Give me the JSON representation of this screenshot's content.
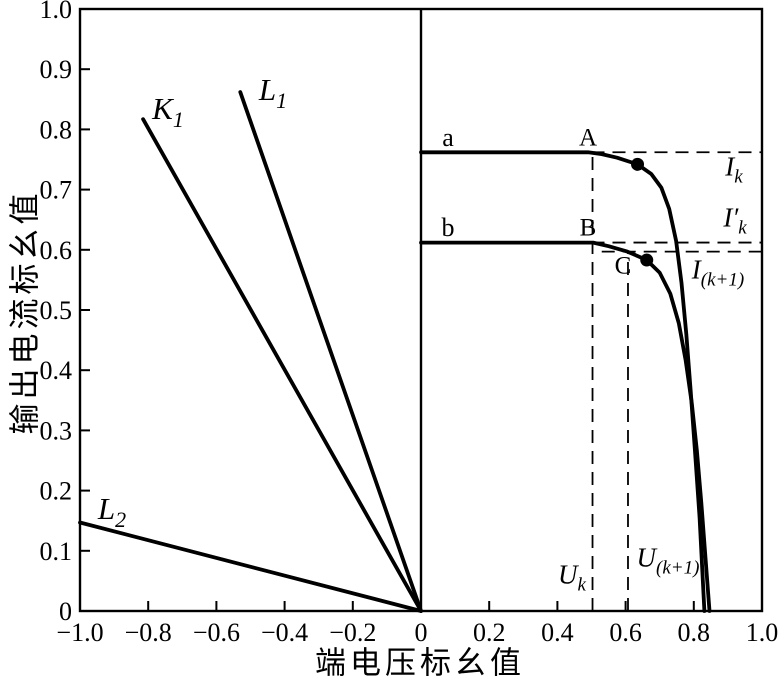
{
  "chart_data": {
    "type": "line",
    "title": "",
    "xlabel": "端电压标幺值",
    "ylabel": "输出电流标幺值",
    "xlim": [
      -1.0,
      1.0
    ],
    "ylim": [
      0.0,
      1.0
    ],
    "grid": false,
    "legend": "none",
    "ink_color": "#000000",
    "background_color": "#ffffff",
    "xticks": {
      "values": [
        -1.0,
        -0.8,
        -0.6,
        -0.4,
        -0.2,
        0,
        0.2,
        0.4,
        0.6,
        0.8,
        1.0
      ],
      "labels": [
        "−1.0",
        "−0.8",
        "−0.6",
        "−0.4",
        "−0.2",
        "0",
        "0.2",
        "0.4",
        "0.6",
        "0.8",
        "1.0"
      ]
    },
    "yticks": {
      "values": [
        0,
        0.1,
        0.2,
        0.3,
        0.4,
        0.5,
        0.6,
        0.7,
        0.8,
        0.9,
        1.0
      ],
      "labels": [
        "0",
        "0.1",
        "0.2",
        "0.3",
        "0.4",
        "0.5",
        "0.6",
        "0.7",
        "0.8",
        "0.9",
        "1.0"
      ]
    },
    "zero_axis_line": true,
    "series": [
      {
        "name": "K1",
        "label": "K1",
        "points": [
          [
            -0.815,
            0.817
          ],
          [
            0,
            0
          ]
        ]
      },
      {
        "name": "L1",
        "label": "L1",
        "points": [
          [
            -0.53,
            0.862
          ],
          [
            0,
            0
          ]
        ]
      },
      {
        "name": "L2",
        "label": "L2",
        "points": [
          [
            -1.0,
            0.147
          ],
          [
            0,
            0
          ]
        ]
      },
      {
        "name": "curve-a",
        "label": "a",
        "points": [
          [
            0,
            0.762
          ],
          [
            0.49,
            0.762
          ],
          [
            0.53,
            0.759
          ],
          [
            0.575,
            0.753
          ],
          [
            0.635,
            0.742
          ],
          [
            0.675,
            0.726
          ],
          [
            0.705,
            0.703
          ],
          [
            0.728,
            0.668
          ],
          [
            0.748,
            0.615
          ],
          [
            0.764,
            0.545
          ],
          [
            0.778,
            0.46
          ],
          [
            0.791,
            0.365
          ],
          [
            0.803,
            0.27
          ],
          [
            0.817,
            0.155
          ],
          [
            0.831,
            0.0
          ]
        ]
      },
      {
        "name": "curve-b",
        "label": "b",
        "points": [
          [
            0,
            0.612
          ],
          [
            0.505,
            0.612
          ],
          [
            0.55,
            0.606
          ],
          [
            0.605,
            0.597
          ],
          [
            0.662,
            0.583
          ],
          [
            0.7,
            0.562
          ],
          [
            0.731,
            0.527
          ],
          [
            0.756,
            0.478
          ],
          [
            0.776,
            0.417
          ],
          [
            0.794,
            0.345
          ],
          [
            0.809,
            0.266
          ],
          [
            0.822,
            0.18
          ],
          [
            0.834,
            0.09
          ],
          [
            0.846,
            0.0
          ]
        ]
      }
    ],
    "markers": [
      {
        "name": "operating-point-a",
        "x": 0.635,
        "y": 0.742
      },
      {
        "name": "operating-point-b",
        "x": 0.662,
        "y": 0.583
      }
    ],
    "guides": [
      {
        "name": "Ik-level",
        "orient": "h",
        "y": 0.762,
        "x1": 0.5,
        "x2": 1.0
      },
      {
        "name": "Ik-prime-level",
        "orient": "h",
        "y": 0.612,
        "x1": 0.5,
        "x2": 1.0
      },
      {
        "name": "Ik-plus1-level",
        "orient": "h",
        "y": 0.597,
        "x1": 0.53,
        "x2": 1.0
      },
      {
        "name": "Uk-level",
        "orient": "v",
        "x": 0.503,
        "y1": 0.0,
        "y2": 0.762
      },
      {
        "name": "Uk-plus1-level",
        "orient": "v",
        "x": 0.607,
        "y1": 0.0,
        "y2": 0.597
      }
    ]
  },
  "annotations": {
    "K1": {
      "main": "K",
      "sub": "1"
    },
    "L1": {
      "main": "L",
      "sub": "1"
    },
    "L2": {
      "main": "L",
      "sub": "2"
    },
    "a": {
      "main": "a"
    },
    "b": {
      "main": "b"
    },
    "A": {
      "main": "A"
    },
    "B": {
      "main": "B"
    },
    "C": {
      "main": "C"
    },
    "Ik": {
      "main": "I",
      "sub": "k"
    },
    "Ik_prime": {
      "main": "I′",
      "sub": "k"
    },
    "Ik_plus1": {
      "main": "I",
      "sub": "(k+1)"
    },
    "Uk": {
      "main": "U",
      "sub": "k"
    },
    "Uk_plus1": {
      "main": "U",
      "sub": "(k+1)"
    }
  }
}
